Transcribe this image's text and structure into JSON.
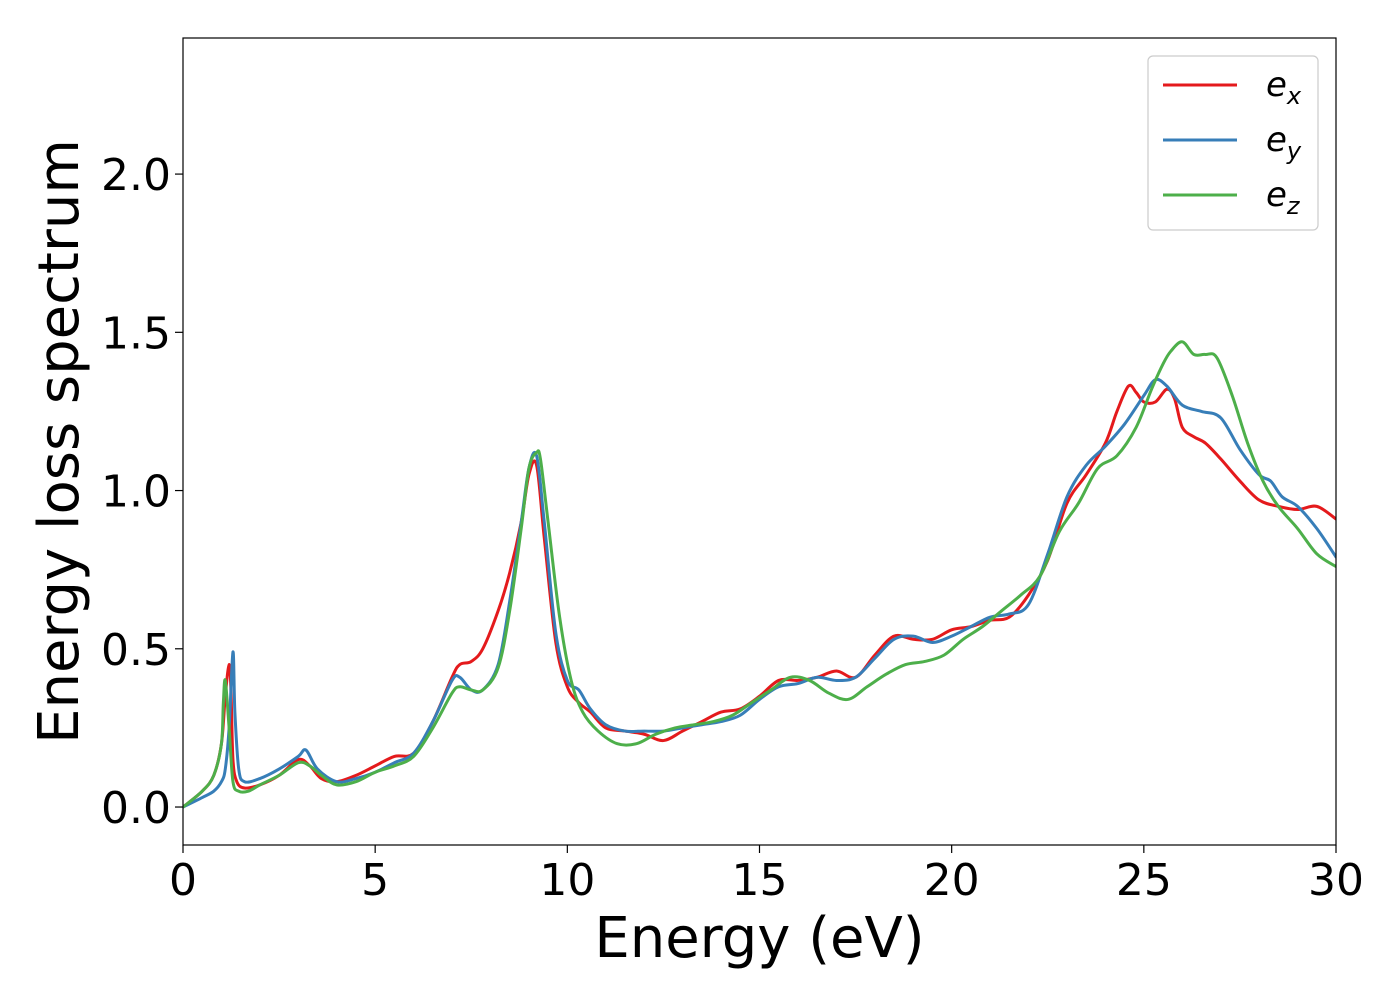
{
  "chart_data": {
    "type": "line",
    "title": "",
    "xlabel": "Energy (eV)",
    "ylabel": "Energy loss spectrum",
    "xlim": [
      0,
      30
    ],
    "ylim": [
      -0.12,
      2.43
    ],
    "xticks": [
      0,
      5,
      10,
      15,
      20,
      25,
      30
    ],
    "xtick_labels": [
      "0",
      "5",
      "10",
      "15",
      "20",
      "25",
      "30"
    ],
    "yticks": [
      0.0,
      0.5,
      1.0,
      1.5,
      2.0
    ],
    "ytick_labels": [
      "0.0",
      "0.5",
      "1.0",
      "1.5",
      "2.0"
    ],
    "grid": false,
    "legend_position": "top-right",
    "series": [
      {
        "name": "e_x",
        "legend_main": "e",
        "legend_sub": "x",
        "color": "#e41a1c",
        "x": [
          0,
          0.5,
          0.8,
          1.0,
          1.1,
          1.2,
          1.25,
          1.3,
          1.4,
          1.6,
          2.0,
          2.5,
          3.0,
          3.3,
          3.6,
          4.0,
          4.5,
          5.0,
          5.5,
          6.0,
          6.5,
          7.0,
          7.2,
          7.5,
          7.8,
          8.2,
          8.5,
          8.8,
          9.0,
          9.2,
          9.4,
          9.7,
          10.0,
          10.3,
          10.6,
          11.0,
          11.5,
          12.0,
          12.5,
          13.0,
          13.5,
          14.0,
          14.5,
          15.0,
          15.5,
          16.0,
          16.5,
          17.0,
          17.5,
          18.0,
          18.5,
          19.0,
          19.5,
          20.0,
          20.5,
          21.0,
          21.5,
          22.0,
          22.5,
          23.0,
          23.5,
          24.0,
          24.3,
          24.6,
          24.8,
          25.0,
          25.3,
          25.6,
          25.8,
          26.0,
          26.3,
          26.6,
          27.0,
          27.5,
          28.0,
          28.5,
          29.0,
          29.5,
          30.0
        ],
        "y": [
          0.0,
          0.05,
          0.1,
          0.2,
          0.35,
          0.45,
          0.36,
          0.15,
          0.08,
          0.06,
          0.07,
          0.1,
          0.15,
          0.13,
          0.09,
          0.08,
          0.1,
          0.13,
          0.16,
          0.17,
          0.27,
          0.41,
          0.45,
          0.46,
          0.5,
          0.62,
          0.74,
          0.9,
          1.05,
          1.08,
          0.85,
          0.52,
          0.38,
          0.33,
          0.3,
          0.25,
          0.24,
          0.23,
          0.21,
          0.24,
          0.27,
          0.3,
          0.31,
          0.35,
          0.4,
          0.4,
          0.41,
          0.43,
          0.41,
          0.48,
          0.54,
          0.53,
          0.53,
          0.56,
          0.57,
          0.59,
          0.6,
          0.67,
          0.78,
          0.96,
          1.05,
          1.15,
          1.25,
          1.33,
          1.31,
          1.28,
          1.28,
          1.32,
          1.29,
          1.2,
          1.17,
          1.15,
          1.1,
          1.03,
          0.97,
          0.95,
          0.94,
          0.95,
          0.91
        ]
      },
      {
        "name": "e_y",
        "legend_main": "e",
        "legend_sub": "y",
        "color": "#377eb8",
        "x": [
          0,
          0.5,
          0.8,
          1.0,
          1.1,
          1.2,
          1.3,
          1.35,
          1.45,
          1.6,
          2.0,
          2.5,
          3.0,
          3.2,
          3.5,
          4.0,
          4.5,
          5.0,
          5.5,
          6.0,
          6.5,
          7.0,
          7.2,
          7.5,
          7.8,
          8.2,
          8.5,
          8.8,
          9.0,
          9.2,
          9.4,
          9.7,
          10.0,
          10.3,
          10.6,
          11.0,
          11.5,
          12.0,
          12.5,
          13.0,
          13.5,
          14.0,
          14.5,
          15.0,
          15.5,
          16.0,
          16.5,
          17.0,
          17.5,
          18.0,
          18.5,
          19.0,
          19.5,
          20.0,
          20.5,
          21.0,
          21.5,
          22.0,
          22.5,
          23.0,
          23.5,
          24.0,
          24.5,
          25.0,
          25.3,
          25.6,
          26.0,
          26.5,
          27.0,
          27.5,
          28.0,
          28.3,
          28.6,
          29.0,
          29.5,
          30.0
        ],
        "y": [
          0.0,
          0.03,
          0.05,
          0.08,
          0.12,
          0.25,
          0.49,
          0.3,
          0.12,
          0.08,
          0.09,
          0.12,
          0.16,
          0.18,
          0.12,
          0.08,
          0.09,
          0.11,
          0.14,
          0.17,
          0.27,
          0.4,
          0.41,
          0.37,
          0.37,
          0.45,
          0.65,
          0.9,
          1.07,
          1.11,
          0.9,
          0.55,
          0.4,
          0.37,
          0.31,
          0.26,
          0.24,
          0.24,
          0.24,
          0.25,
          0.26,
          0.27,
          0.29,
          0.34,
          0.38,
          0.39,
          0.41,
          0.4,
          0.41,
          0.47,
          0.53,
          0.54,
          0.52,
          0.54,
          0.57,
          0.6,
          0.61,
          0.64,
          0.8,
          0.98,
          1.08,
          1.14,
          1.21,
          1.3,
          1.35,
          1.33,
          1.27,
          1.25,
          1.23,
          1.13,
          1.05,
          1.03,
          0.98,
          0.95,
          0.88,
          0.79
        ]
      },
      {
        "name": "e_z",
        "legend_main": "e",
        "legend_sub": "z",
        "color": "#4daf4a",
        "x": [
          0,
          0.5,
          0.8,
          1.0,
          1.05,
          1.1,
          1.2,
          1.3,
          1.45,
          1.7,
          2.0,
          2.5,
          3.0,
          3.3,
          3.6,
          4.0,
          4.5,
          5.0,
          5.5,
          6.0,
          6.5,
          7.0,
          7.2,
          7.5,
          7.8,
          8.2,
          8.5,
          8.8,
          9.0,
          9.2,
          9.3,
          9.5,
          9.8,
          10.1,
          10.4,
          10.8,
          11.3,
          11.8,
          12.3,
          12.8,
          13.3,
          13.8,
          14.3,
          14.8,
          15.3,
          15.8,
          16.3,
          16.8,
          17.3,
          17.8,
          18.3,
          18.8,
          19.3,
          19.8,
          20.3,
          20.8,
          21.3,
          21.8,
          22.3,
          22.8,
          23.3,
          23.8,
          24.3,
          24.8,
          25.2,
          25.5,
          25.7,
          26.0,
          26.3,
          26.6,
          26.9,
          27.3,
          27.7,
          28.1,
          28.5,
          29.0,
          29.5,
          30.0
        ],
        "y": [
          0.0,
          0.05,
          0.1,
          0.2,
          0.33,
          0.4,
          0.25,
          0.08,
          0.05,
          0.05,
          0.07,
          0.1,
          0.14,
          0.13,
          0.1,
          0.07,
          0.08,
          0.11,
          0.13,
          0.16,
          0.25,
          0.36,
          0.38,
          0.37,
          0.37,
          0.44,
          0.62,
          0.88,
          1.07,
          1.12,
          1.1,
          0.9,
          0.6,
          0.4,
          0.3,
          0.24,
          0.2,
          0.2,
          0.23,
          0.25,
          0.26,
          0.27,
          0.29,
          0.33,
          0.37,
          0.41,
          0.4,
          0.36,
          0.34,
          0.38,
          0.42,
          0.45,
          0.46,
          0.48,
          0.53,
          0.57,
          0.62,
          0.67,
          0.73,
          0.87,
          0.96,
          1.07,
          1.11,
          1.2,
          1.32,
          1.4,
          1.44,
          1.47,
          1.43,
          1.43,
          1.42,
          1.3,
          1.15,
          1.03,
          0.95,
          0.88,
          0.8,
          0.76
        ]
      }
    ]
  }
}
